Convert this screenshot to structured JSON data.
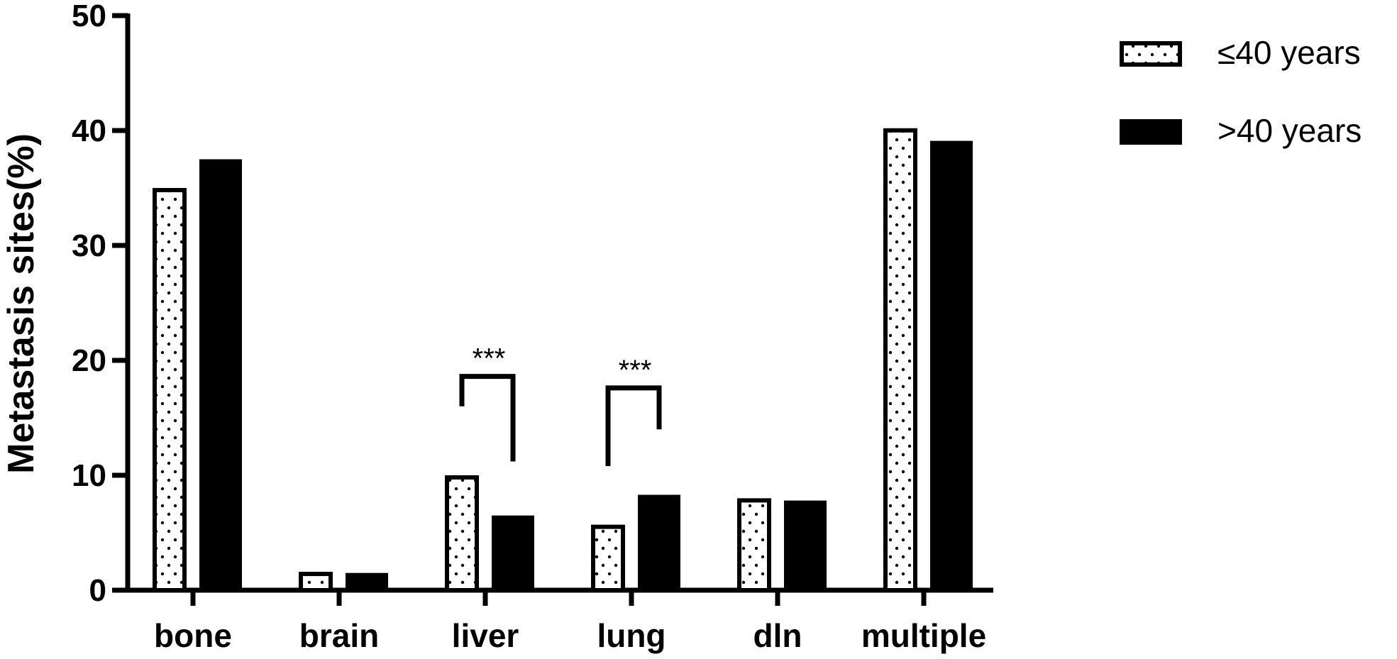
{
  "chart_data": {
    "type": "bar",
    "categories": [
      "bone",
      "brain",
      "liver",
      "lung",
      "dln",
      "multiple"
    ],
    "series": [
      {
        "name": "≤40 years",
        "values": [
          35.0,
          1.6,
          10.0,
          5.7,
          8.0,
          40.2
        ],
        "color": "#ffffff",
        "pattern": "dotted"
      },
      {
        "name": ">40 years",
        "values": [
          37.5,
          1.5,
          6.5,
          8.3,
          7.8,
          39.1
        ],
        "color": "#000000",
        "pattern": "solid"
      }
    ],
    "title": "",
    "xlabel": "",
    "ylabel": "Metastasis sites(%)",
    "ylim": [
      0,
      50
    ],
    "yticks": [
      0,
      10,
      20,
      30,
      40,
      50
    ],
    "grid": false,
    "legend_position": "top-right",
    "annotations": [
      {
        "category": "liver",
        "text": "***",
        "left_y": 16,
        "top_y": 18.6,
        "right_y": 11.2
      },
      {
        "category": "lung",
        "text": "***",
        "left_y": 10.8,
        "top_y": 17.6,
        "right_y": 14
      }
    ]
  }
}
